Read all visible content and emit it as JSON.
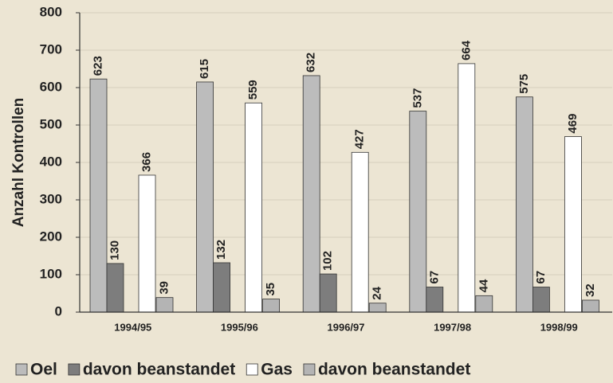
{
  "chart_data": {
    "type": "bar",
    "y_label": "Anzahl Kontrollen",
    "categories": [
      "1994/95",
      "1995/96",
      "1996/97",
      "1997/98",
      "1998/99"
    ],
    "series": [
      {
        "name": "Oel",
        "color": "#bcbcbc",
        "values": [
          623,
          615,
          632,
          537,
          575
        ]
      },
      {
        "name": "davon beanstandet",
        "color": "#7d7d7d",
        "values": [
          130,
          132,
          102,
          67,
          67
        ]
      },
      {
        "name": "Gas",
        "color": "#ffffff",
        "values": [
          366,
          559,
          427,
          664,
          469
        ]
      },
      {
        "name": "davon beanstandet",
        "color": "#b4b4b4",
        "values": [
          39,
          35,
          24,
          44,
          32
        ]
      }
    ],
    "ylim": [
      0,
      800
    ],
    "yticks": [
      0,
      100,
      200,
      300,
      400,
      500,
      600,
      700,
      800
    ],
    "grid": true,
    "legend": "bottom"
  }
}
